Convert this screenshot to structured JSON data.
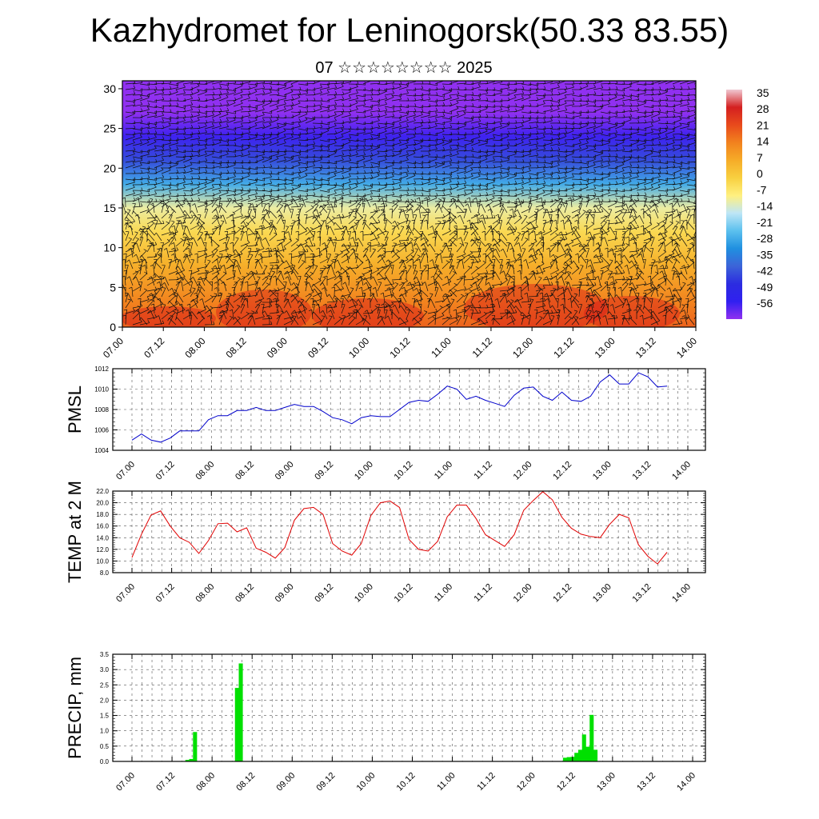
{
  "title": "Kazhydromet for Leninogorsk(50.33 83.55)",
  "subtitle": "07 ☆☆☆☆☆☆☆☆ 2025",
  "chart_data": [
    {
      "type": "heatmap",
      "panel": "cross-section",
      "x_ticks": [
        "07.00",
        "07.12",
        "08.00",
        "08.12",
        "09.00",
        "09.12",
        "10.00",
        "10.12",
        "11.00",
        "11.12",
        "12.00",
        "12.12",
        "13.00",
        "13.12",
        "14.00"
      ],
      "y_ticks": [
        0,
        5,
        10,
        15,
        20,
        25,
        30
      ],
      "ylim": [
        0,
        31
      ],
      "colorbar": {
        "labels": [
          "35",
          "28",
          "21",
          "14",
          "7",
          "0",
          "-7",
          "-14",
          "-21",
          "-28",
          "-35",
          "-42",
          "-49",
          "-56"
        ],
        "colors": [
          "#f0c8d2",
          "#d42020",
          "#e84a1c",
          "#f2821e",
          "#f6ac28",
          "#f8d040",
          "#fff080",
          "#bee6f6",
          "#5cc0ee",
          "#2090e0",
          "#3c64d8",
          "#2c2ce0",
          "#3020f0",
          "#9030f0"
        ]
      },
      "temperature_levels": [
        {
          "height": 0,
          "value": 18
        },
        {
          "height": 3,
          "value": 14
        },
        {
          "height": 8,
          "value": 6
        },
        {
          "height": 12,
          "value": -2
        },
        {
          "height": 15,
          "value": -9
        },
        {
          "height": 18,
          "value": -24
        },
        {
          "height": 21,
          "value": -38
        },
        {
          "height": 24,
          "value": -50
        },
        {
          "height": 27,
          "value": -56
        },
        {
          "height": 31,
          "value": -62
        }
      ]
    },
    {
      "type": "line",
      "panel": "pmsl",
      "ylabel": "PMSL",
      "ylim": [
        1004,
        1012
      ],
      "y_ticks": [
        "1004",
        "1006",
        "1008",
        "1010",
        "1012"
      ],
      "x_ticks": [
        "07.00",
        "07.12",
        "08.00",
        "08.12",
        "09.00",
        "09.12",
        "10.00",
        "10.12",
        "11.00",
        "11.12",
        "12.00",
        "12.12",
        "13.00",
        "13.12",
        "14.00"
      ],
      "color": "#0000cc",
      "series": [
        {
          "values": [
            1005.0,
            1005.6,
            1005.0,
            1004.8,
            1005.2,
            1005.9,
            1005.9,
            1005.9,
            1007.0,
            1007.4,
            1007.4,
            1007.9,
            1007.9,
            1008.2,
            1007.9,
            1007.9,
            1008.2,
            1008.5,
            1008.3,
            1008.3,
            1007.8,
            1007.2,
            1007.0,
            1006.6,
            1007.2,
            1007.4,
            1007.3,
            1007.3,
            1008.0,
            1008.7,
            1008.9,
            1008.8,
            1009.5,
            1010.3,
            1010.0,
            1009.0,
            1009.3,
            1008.9,
            1008.6,
            1008.3,
            1009.4,
            1010.1,
            1010.2,
            1009.3,
            1008.9,
            1009.7,
            1008.9,
            1008.8,
            1009.3,
            1010.7,
            1011.4,
            1010.5,
            1010.5,
            1011.6,
            1011.2,
            1010.2,
            1010.3
          ]
        }
      ]
    },
    {
      "type": "line",
      "panel": "temp2m",
      "ylabel": "TEMP at 2 M",
      "ylim": [
        8,
        22
      ],
      "y_ticks": [
        "8.0",
        "10.0",
        "12.0",
        "14.0",
        "16.0",
        "18.0",
        "20.0",
        "22.0"
      ],
      "x_ticks": [
        "07.00",
        "07.12",
        "08.00",
        "08.12",
        "09.00",
        "09.12",
        "10.00",
        "10.12",
        "11.00",
        "11.12",
        "12.00",
        "12.12",
        "13.00",
        "13.12",
        "14.00"
      ],
      "color": "#e00000",
      "series": [
        {
          "values": [
            10.6,
            14.6,
            17.9,
            18.6,
            16.0,
            14.0,
            13.2,
            11.3,
            13.5,
            16.4,
            16.5,
            15.0,
            15.7,
            12.2,
            11.5,
            10.5,
            12.3,
            17.0,
            19.0,
            19.2,
            18.0,
            13.0,
            11.7,
            11.0,
            13.0,
            17.8,
            20.0,
            20.3,
            19.2,
            13.7,
            12.0,
            11.7,
            13.4,
            17.6,
            19.6,
            19.6,
            17.3,
            14.5,
            13.5,
            12.5,
            14.5,
            18.7,
            20.4,
            21.9,
            20.5,
            17.5,
            15.6,
            14.6,
            14.2,
            14.0,
            16.3,
            18.0,
            17.4,
            12.8,
            10.8,
            9.5,
            11.5
          ]
        }
      ]
    },
    {
      "type": "bar",
      "panel": "precip",
      "ylabel": "PRECIP, mm",
      "ylim": [
        0,
        3.5
      ],
      "y_ticks": [
        "0.0",
        "0.5",
        "1.0",
        "1.5",
        "2.0",
        "2.5",
        "3.0",
        "3.5"
      ],
      "x_ticks": [
        "07.00",
        "07.12",
        "08.00",
        "08.12",
        "09.00",
        "09.12",
        "10.00",
        "10.12",
        "11.00",
        "11.12",
        "12.00",
        "12.12",
        "13.00",
        "13.12",
        "14.00"
      ],
      "color": "#00e000",
      "series": [
        {
          "values": [
            0,
            0,
            0,
            0,
            0,
            0,
            0,
            0,
            0,
            0,
            0,
            0,
            0,
            0,
            0.05,
            0.08,
            0.96,
            0,
            0,
            0,
            0,
            0,
            0,
            0,
            0,
            0,
            0,
            2.4,
            3.2,
            0,
            0,
            0,
            0,
            0,
            0,
            0,
            0,
            0,
            0,
            0,
            0,
            0,
            0,
            0,
            0,
            0,
            0,
            0,
            0,
            0,
            0,
            0,
            0,
            0,
            0,
            0,
            0,
            0,
            0,
            0,
            0,
            0,
            0,
            0,
            0,
            0,
            0,
            0,
            0,
            0,
            0,
            0,
            0,
            0,
            0,
            0,
            0,
            0,
            0,
            0,
            0,
            0,
            0,
            0,
            0,
            0,
            0,
            0,
            0,
            0,
            0,
            0,
            0,
            0,
            0,
            0,
            0,
            0,
            0,
            0,
            0,
            0,
            0,
            0,
            0,
            0,
            0,
            0,
            0,
            0,
            0,
            0,
            0,
            0.12,
            0.14,
            0.15,
            0.28,
            0.38,
            0.88,
            0.48,
            1.52,
            0.38,
            0,
            0,
            0,
            0,
            0,
            0,
            0,
            0,
            0,
            0,
            0,
            0,
            0,
            0,
            0,
            0,
            0,
            0,
            0,
            0,
            0,
            0,
            0,
            0,
            0
          ]
        }
      ]
    }
  ]
}
